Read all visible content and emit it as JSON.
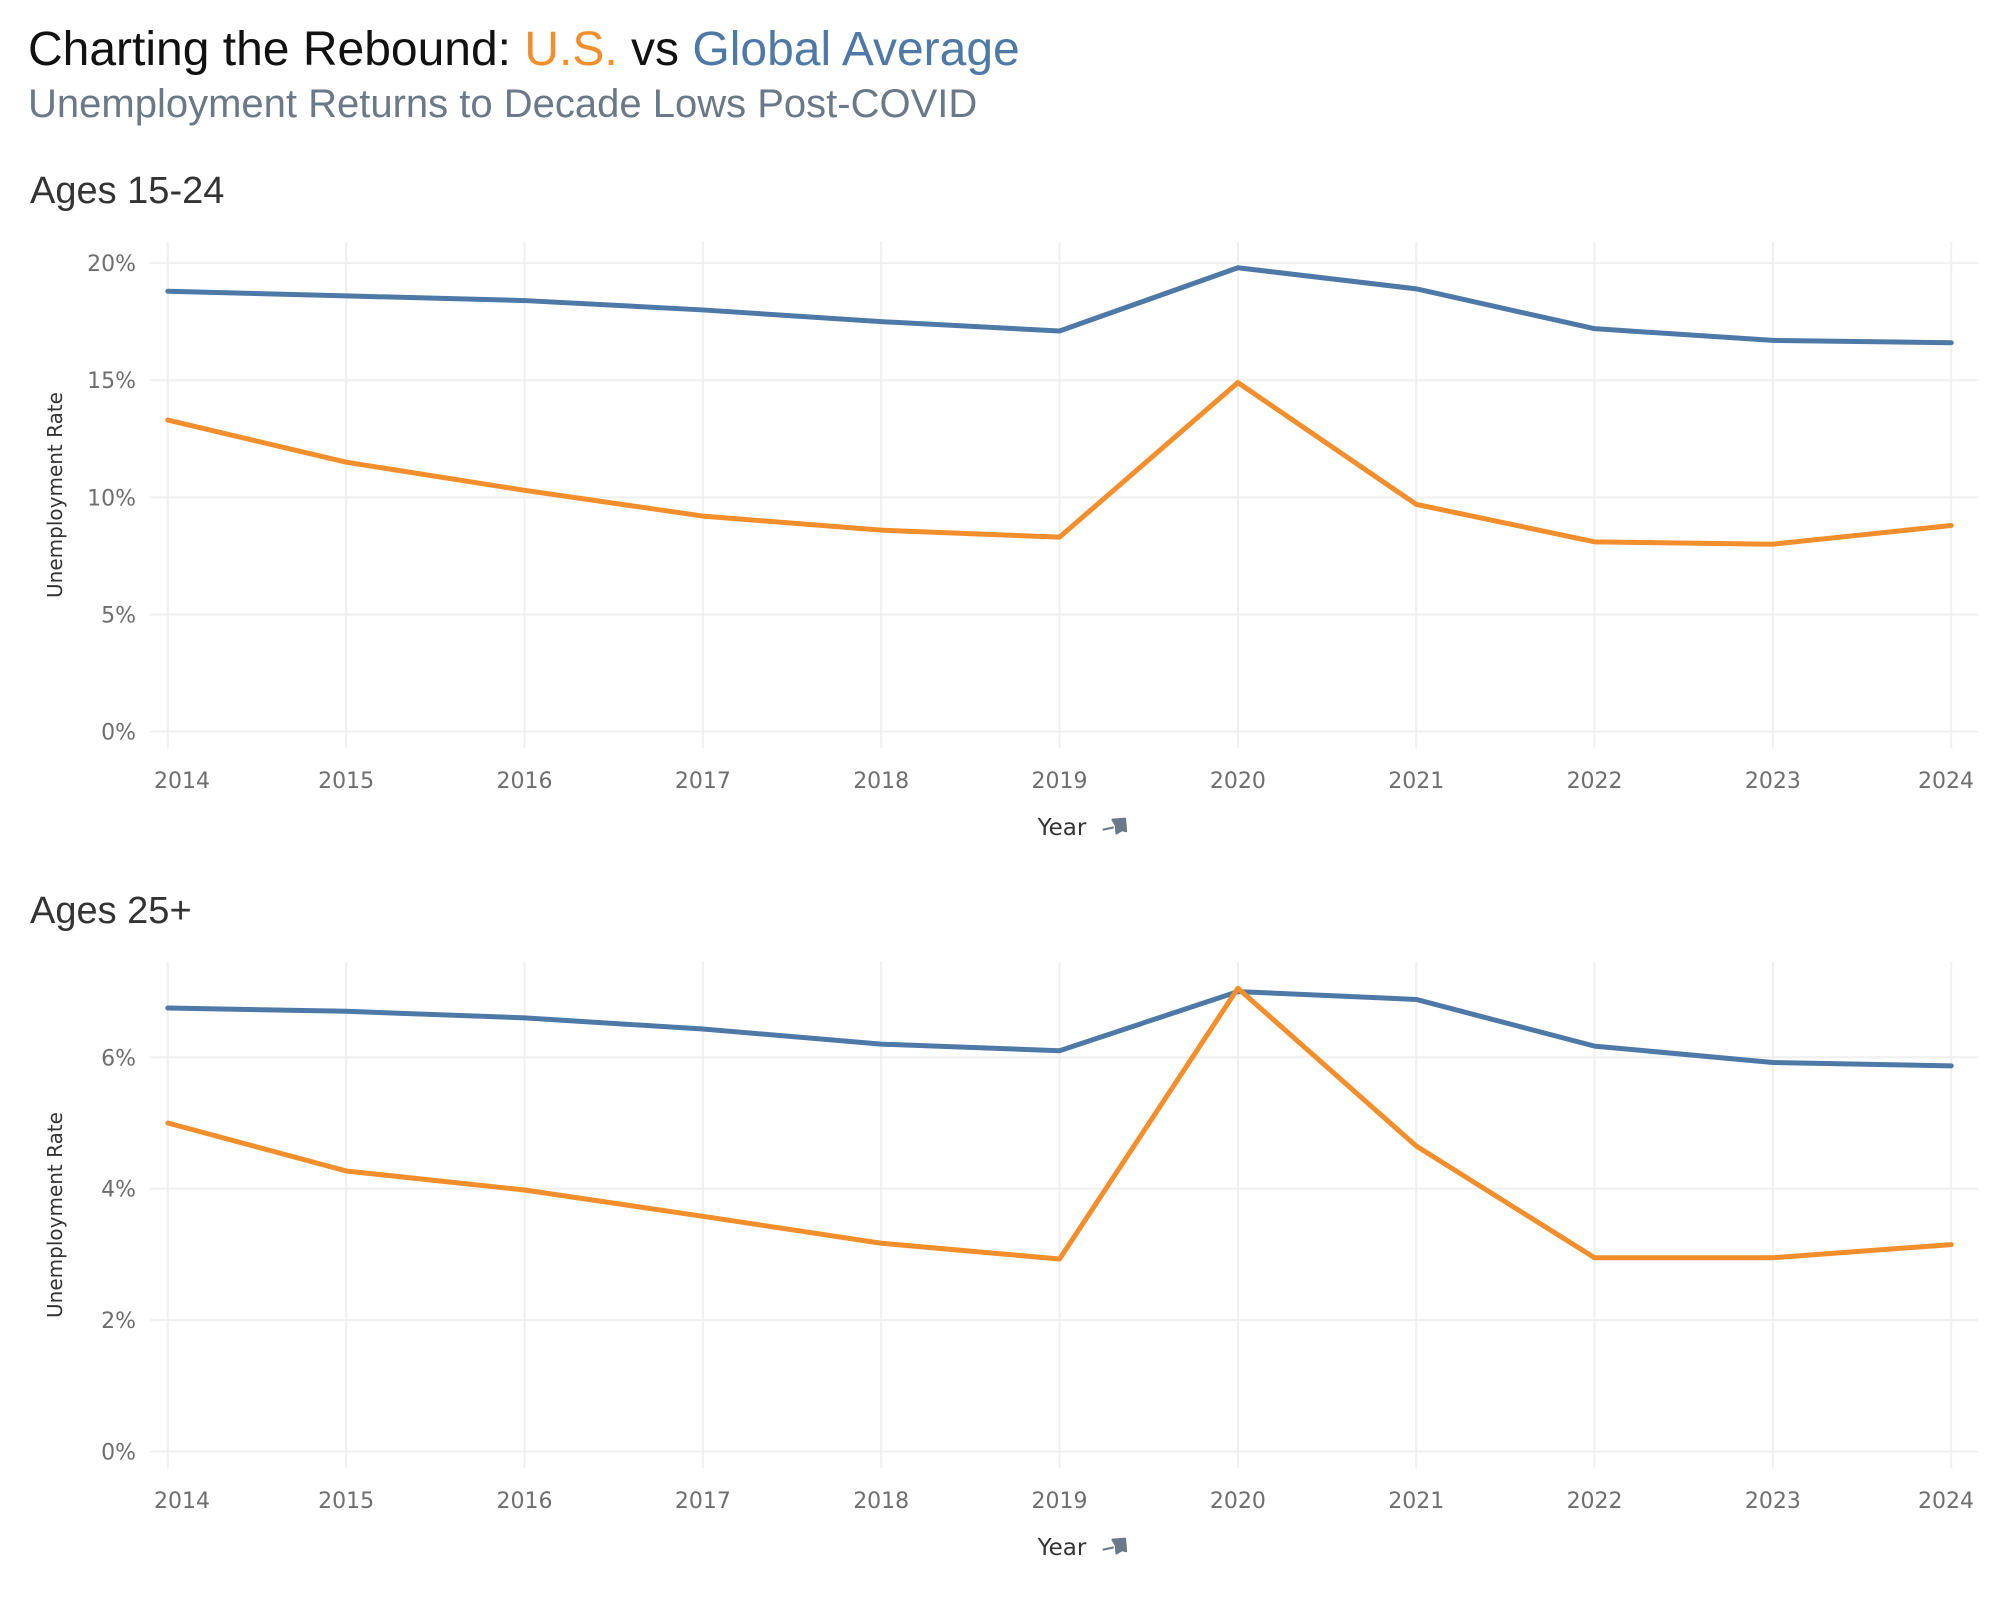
{
  "header": {
    "title_prefix": "Charting the Rebound: ",
    "title_us": "U.S.",
    "title_vs": " vs ",
    "title_global": "Global Average",
    "subtitle": "Unemployment Returns to Decade Lows Post-COVID"
  },
  "colors": {
    "us": "#f28e2b",
    "global": "#4e79a7",
    "grid": "#efefef",
    "tick": "#6e6e6e"
  },
  "icons": {
    "axis_pin": "pin-icon"
  },
  "chart_data": [
    {
      "type": "line",
      "title": "Ages 15-24",
      "xlabel": "Year",
      "ylabel": "Unemployment Rate",
      "x": [
        2014,
        2015,
        2016,
        2017,
        2018,
        2019,
        2020,
        2021,
        2022,
        2023,
        2024
      ],
      "xlim": [
        2013.9,
        2024.15
      ],
      "ylim": [
        -0.7,
        20.9
      ],
      "yticks": [
        0,
        5,
        10,
        15,
        20
      ],
      "ytick_suffix": "%",
      "grid": true,
      "series": [
        {
          "name": "Global Average",
          "color": "#4e79a7",
          "values": [
            18.8,
            18.6,
            18.4,
            18.0,
            17.5,
            17.1,
            19.8,
            18.9,
            17.2,
            16.7,
            16.6
          ]
        },
        {
          "name": "U.S.",
          "color": "#f28e2b",
          "values": [
            13.3,
            11.5,
            10.3,
            9.2,
            8.6,
            8.3,
            14.9,
            9.7,
            8.1,
            8.0,
            8.8
          ]
        }
      ]
    },
    {
      "type": "line",
      "title": "Ages 25+",
      "xlabel": "Year",
      "ylabel": "Unemployment Rate",
      "x": [
        2014,
        2015,
        2016,
        2017,
        2018,
        2019,
        2020,
        2021,
        2022,
        2023,
        2024
      ],
      "xlim": [
        2013.9,
        2024.15
      ],
      "ylim": [
        -0.25,
        7.45
      ],
      "yticks": [
        0,
        2,
        4,
        6
      ],
      "ytick_suffix": "%",
      "grid": true,
      "series": [
        {
          "name": "Global Average",
          "color": "#4e79a7",
          "values": [
            6.75,
            6.7,
            6.6,
            6.43,
            6.2,
            6.1,
            7.0,
            6.88,
            6.17,
            5.92,
            5.87
          ]
        },
        {
          "name": "U.S.",
          "color": "#f28e2b",
          "values": [
            5.0,
            4.27,
            3.98,
            3.58,
            3.17,
            2.93,
            7.05,
            4.65,
            2.95,
            2.95,
            3.15
          ]
        }
      ]
    }
  ]
}
